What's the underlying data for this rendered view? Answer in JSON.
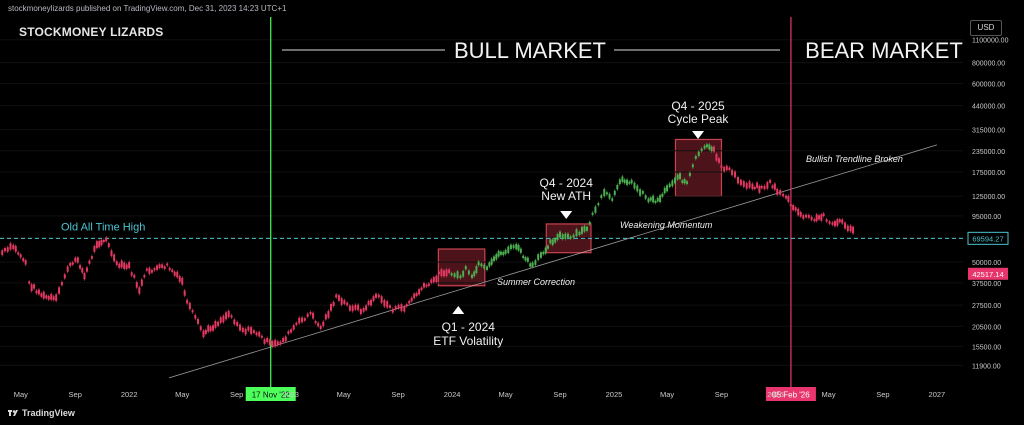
{
  "header": {
    "published_text": "stockmoneylizards published on TradingView.com, Dec 31, 2023 14:23 UTC+1",
    "brand": "STOCKMONEY LIZARDS",
    "currency_button": "USD"
  },
  "footer": {
    "logo_icon": "tradingview-logo-icon",
    "label": "TradingView"
  },
  "colors": {
    "bull": "#4caf50",
    "bear": "#e53962",
    "green_line": "#4cff5a",
    "pink_line": "#e8356d",
    "cyan": "#4cc3cf",
    "box_fill": "#5a1620",
    "box_stroke": "#c8424f"
  },
  "chart_data": {
    "type": "candlestick",
    "title": "",
    "y_scale": "log",
    "ylim": [
      9500,
      1500000
    ],
    "x_ticks": [
      "May",
      "Sep",
      "2022",
      "May",
      "Sep",
      "2023",
      "May",
      "Sep",
      "2024",
      "May",
      "Sep",
      "2025",
      "May",
      "Sep",
      "2026",
      "May",
      "Sep",
      "2027"
    ],
    "y_ticks": [
      1100000,
      800000,
      600000,
      440000,
      315000,
      235000,
      175000,
      125000,
      95000,
      70000,
      50000,
      37500,
      27500,
      20500,
      15500,
      11900
    ],
    "y_tick_labels": [
      "1100000.00",
      "800000.00",
      "600000.00",
      "440000.00",
      "315000.00",
      "235000.00",
      "175000.00",
      "125000.00",
      "95000.00",
      "70000.00",
      "50000.00",
      "37500.00",
      "27500.00",
      "20500.00",
      "15500.00",
      "11900.00"
    ],
    "price_labels": [
      {
        "text": "69594.27",
        "value": 69594.27,
        "color": "cyan"
      },
      {
        "text": "42517.14",
        "value": 42517.14,
        "color": "pink"
      }
    ],
    "old_ath": {
      "label": "Old All Time High",
      "value": 69594.27
    },
    "vertical_markers": [
      {
        "label": "17 Nov '22",
        "date": "2022-11-17",
        "color": "green"
      },
      {
        "label": "05 Feb '26",
        "date": "2026-02-05",
        "color": "pink"
      }
    ],
    "regions": [
      {
        "label": "BULL MARKET"
      },
      {
        "label": "BEAR MARKET"
      }
    ],
    "trendline": {
      "label": "Bullish Trendline Broken",
      "from": {
        "date": "2022-04-01",
        "value": 10000
      },
      "to": {
        "date": "2027-01-01",
        "value": 255000
      }
    },
    "boxes": [
      {
        "from": "2023-12-01",
        "to": "2024-03-15",
        "low": 36000,
        "high": 60000
      },
      {
        "from": "2024-08-01",
        "to": "2024-11-10",
        "low": 57000,
        "high": 85000
      },
      {
        "from": "2025-05-20",
        "to": "2025-09-01",
        "low": 125000,
        "high": 275000
      }
    ],
    "annotations": [
      {
        "title": "Q1 - 2024",
        "subtitle": "ETF Volatility",
        "marker": "up",
        "date": "2024-01-15"
      },
      {
        "title": "Q4 - 2024",
        "subtitle": "New ATH",
        "marker": "down",
        "date": "2024-09-15"
      },
      {
        "title": "Q4 - 2025",
        "subtitle": "Cycle Peak",
        "marker": "down",
        "date": "2025-07-10"
      },
      {
        "text": "Summer Correction",
        "date": "2024-06-15",
        "value": 44000
      },
      {
        "text": "Weakening Momentum",
        "date": "2024-11-25",
        "value": 85000
      },
      {
        "text": "Bullish Trendline Broken",
        "date": "2025-10-01",
        "value": 200000
      }
    ],
    "series": [
      {
        "name": "historical",
        "color": "bear",
        "points": [
          [
            "2021-03-20",
            57000
          ],
          [
            "2021-04-14",
            62000
          ],
          [
            "2021-05-12",
            50000
          ],
          [
            "2021-05-20",
            37000
          ],
          [
            "2021-06-22",
            31000
          ],
          [
            "2021-07-20",
            29800
          ],
          [
            "2021-08-15",
            46000
          ],
          [
            "2021-09-07",
            52000
          ],
          [
            "2021-09-22",
            41000
          ],
          [
            "2021-10-20",
            65000
          ],
          [
            "2021-11-10",
            68000
          ],
          [
            "2021-12-04",
            48000
          ],
          [
            "2022-01-01",
            47000
          ],
          [
            "2022-01-24",
            34000
          ],
          [
            "2022-02-10",
            44000
          ],
          [
            "2022-03-28",
            47500
          ],
          [
            "2022-05-01",
            38000
          ],
          [
            "2022-05-12",
            28500
          ],
          [
            "2022-06-18",
            18500
          ],
          [
            "2022-07-15",
            21000
          ],
          [
            "2022-08-14",
            24500
          ],
          [
            "2022-09-15",
            19500
          ],
          [
            "2022-10-10",
            19200
          ],
          [
            "2022-11-09",
            16500
          ],
          [
            "2022-11-21",
            15800
          ],
          [
            "2022-12-15",
            16800
          ],
          [
            "2023-01-14",
            21000
          ],
          [
            "2023-02-15",
            24500
          ],
          [
            "2023-03-10",
            20000
          ],
          [
            "2023-04-14",
            30500
          ],
          [
            "2023-05-15",
            27000
          ],
          [
            "2023-06-15",
            25500
          ],
          [
            "2023-07-13",
            31500
          ],
          [
            "2023-08-20",
            26000
          ],
          [
            "2023-09-15",
            26500
          ],
          [
            "2023-10-24",
            34500
          ],
          [
            "2023-11-15",
            37500
          ],
          [
            "2023-12-08",
            44000
          ],
          [
            "2023-12-31",
            42500
          ]
        ]
      },
      {
        "name": "projection",
        "color": "bull",
        "points": [
          [
            "2023-12-31",
            42500
          ],
          [
            "2024-01-20",
            41000
          ],
          [
            "2024-02-01",
            45000
          ],
          [
            "2024-02-15",
            40000
          ],
          [
            "2024-03-01",
            48000
          ],
          [
            "2024-03-20",
            45000
          ],
          [
            "2024-04-10",
            55000
          ],
          [
            "2024-05-01",
            58000
          ],
          [
            "2024-05-25",
            63000
          ],
          [
            "2024-06-15",
            52000
          ],
          [
            "2024-07-01",
            47000
          ],
          [
            "2024-07-20",
            55000
          ],
          [
            "2024-08-10",
            66000
          ],
          [
            "2024-09-01",
            72000
          ],
          [
            "2024-09-25",
            70000
          ],
          [
            "2024-10-15",
            75000
          ],
          [
            "2024-11-01",
            80000
          ],
          [
            "2024-11-20",
            105000
          ],
          [
            "2024-12-10",
            130000
          ],
          [
            "2024-12-28",
            120000
          ],
          [
            "2025-01-20",
            160000
          ],
          [
            "2025-02-10",
            150000
          ],
          [
            "2025-03-01",
            135000
          ],
          [
            "2025-03-20",
            120000
          ],
          [
            "2025-04-10",
            118000
          ],
          [
            "2025-05-01",
            140000
          ],
          [
            "2025-05-25",
            165000
          ],
          [
            "2025-06-15",
            150000
          ],
          [
            "2025-07-05",
            210000
          ],
          [
            "2025-07-25",
            250000
          ],
          [
            "2025-08-15",
            235000
          ]
        ]
      },
      {
        "name": "bear",
        "color": "bear",
        "points": [
          [
            "2025-08-15",
            235000
          ],
          [
            "2025-09-01",
            190000
          ],
          [
            "2025-09-25",
            175000
          ],
          [
            "2025-10-15",
            150000
          ],
          [
            "2025-11-10",
            145000
          ],
          [
            "2025-12-01",
            140000
          ],
          [
            "2025-12-20",
            150000
          ],
          [
            "2026-01-05",
            135000
          ],
          [
            "2026-01-25",
            125000
          ],
          [
            "2026-02-10",
            105000
          ],
          [
            "2026-03-05",
            95000
          ],
          [
            "2026-03-30",
            90000
          ],
          [
            "2026-04-20",
            95000
          ],
          [
            "2026-05-10",
            85000
          ],
          [
            "2026-06-01",
            88000
          ],
          [
            "2026-06-20",
            78000
          ],
          [
            "2026-07-01",
            76000
          ]
        ]
      }
    ]
  }
}
